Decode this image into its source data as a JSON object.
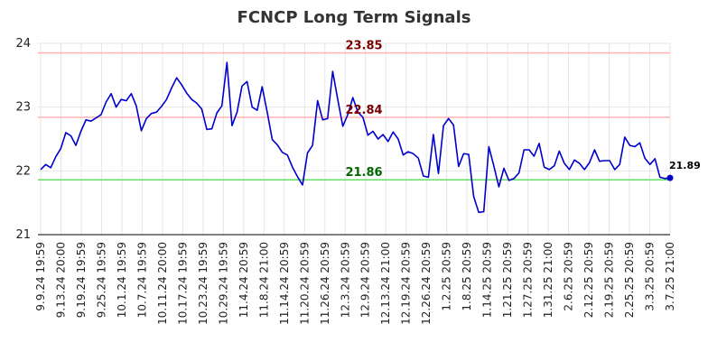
{
  "chart_data": {
    "type": "line",
    "title": "FCNCP Long Term Signals",
    "xlabel": "",
    "ylabel": "",
    "ylim": [
      21,
      24
    ],
    "yticks": [
      21,
      22,
      23,
      24
    ],
    "grid": true,
    "legend": "none",
    "x_tick_labels": [
      "9.9.24 19:59",
      "9.13.24 20:00",
      "9.19.24 19:59",
      "9.25.24 19:59",
      "10.1.24 19:59",
      "10.7.24 19:59",
      "10.11.24 20:00",
      "10.17.24 19:59",
      "10.23.24 19:59",
      "10.29.24 19:59",
      "11.4.24 20:59",
      "11.8.24 21:00",
      "11.14.24 20:59",
      "11.20.24 20:59",
      "11.26.24 20:59",
      "12.3.24 20:59",
      "12.9.24 20:59",
      "12.13.24 21:00",
      "12.19.24 20:59",
      "12.26.24 20:59",
      "1.2.25 20:59",
      "1.8.25 20:59",
      "1.14.25 20:59",
      "1.21.25 20:59",
      "1.27.25 20:59",
      "1.31.25 21:00",
      "2.6.25 20:59",
      "2.12.25 20:59",
      "2.19.25 20:59",
      "2.25.25 20:59",
      "3.3.25 20:59",
      "3.7.25 21:00"
    ],
    "reference_lines": [
      {
        "value": 23.85,
        "label": "23.85",
        "line_color": "#ffb3b3",
        "label_color": "#7a0000"
      },
      {
        "value": 22.84,
        "label": "22.84",
        "line_color": "#ffb3b3",
        "label_color": "#7a0000"
      },
      {
        "value": 21.86,
        "label": "21.86",
        "line_color": "#66dd66",
        "label_color": "#006600"
      }
    ],
    "last_value_label": "21.89",
    "series": [
      {
        "color": "#0000cc",
        "values": [
          22.02,
          22.1,
          22.05,
          22.22,
          22.35,
          22.6,
          22.55,
          22.4,
          22.62,
          22.8,
          22.78,
          22.83,
          22.88,
          23.08,
          23.21,
          23.0,
          23.12,
          23.1,
          23.21,
          23.02,
          22.63,
          22.82,
          22.9,
          22.92,
          23.01,
          23.12,
          23.3,
          23.46,
          23.35,
          23.22,
          23.12,
          23.06,
          22.97,
          22.65,
          22.66,
          22.91,
          23.02,
          23.7,
          22.71,
          22.92,
          23.33,
          23.4,
          23.0,
          22.95,
          23.32,
          22.92,
          22.49,
          22.41,
          22.29,
          22.25,
          22.06,
          21.91,
          21.78,
          22.28,
          22.4,
          23.1,
          22.8,
          22.82,
          23.56,
          23.12,
          22.7,
          22.88,
          23.15,
          22.92,
          22.84,
          22.56,
          22.62,
          22.5,
          22.57,
          22.46,
          22.61,
          22.5,
          22.25,
          22.3,
          22.27,
          22.2,
          21.92,
          21.9,
          22.57,
          21.96,
          22.71,
          22.82,
          22.72,
          22.07,
          22.27,
          22.26,
          21.6,
          21.35,
          21.36,
          22.38,
          22.08,
          21.75,
          22.04,
          21.85,
          21.88,
          21.97,
          22.33,
          22.33,
          22.23,
          22.43,
          22.06,
          22.02,
          22.08,
          22.31,
          22.12,
          22.02,
          22.17,
          22.12,
          22.02,
          22.13,
          22.33,
          22.15,
          22.16,
          22.16,
          22.02,
          22.1,
          22.53,
          22.4,
          22.38,
          22.44,
          22.2,
          22.1,
          22.19,
          21.9,
          21.88,
          21.89
        ]
      }
    ]
  }
}
